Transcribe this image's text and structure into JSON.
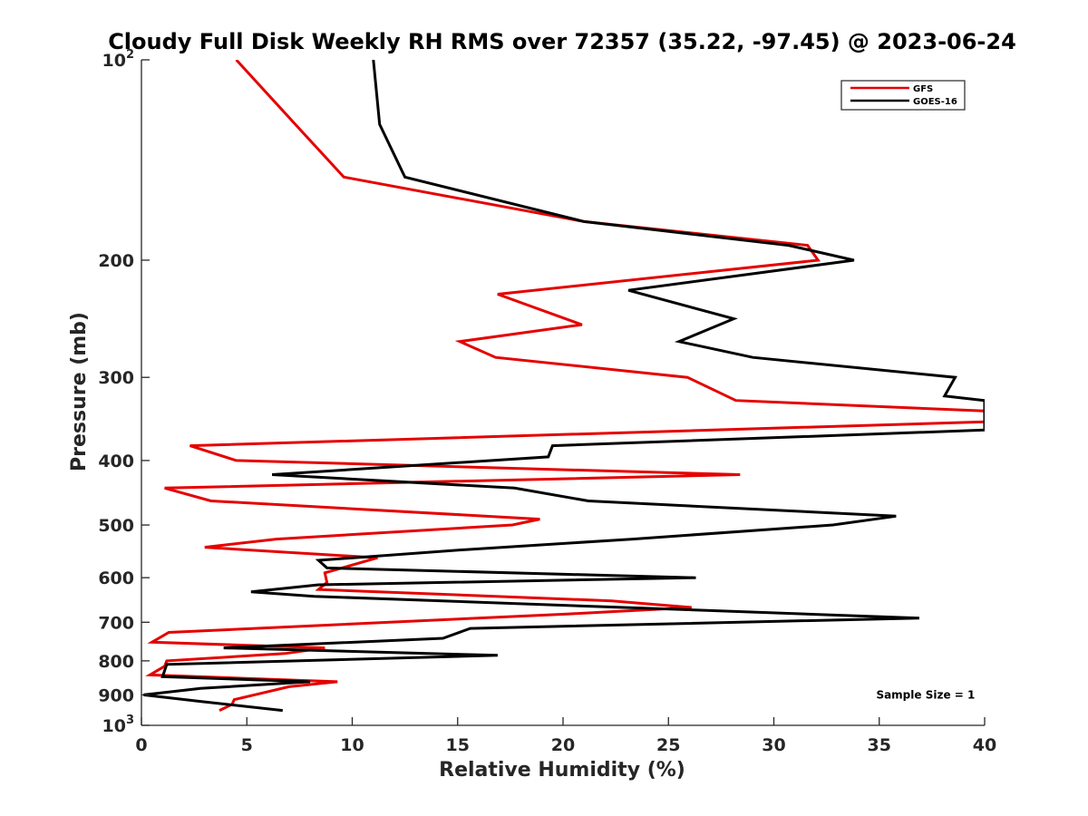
{
  "chart_data": {
    "type": "line",
    "title": "Cloudy Full Disk Weekly RH RMS over 72357 (35.22, -97.45) @ 2023-06-24",
    "xlabel": "Relative Humidity (%)",
    "ylabel": "Pressure (mb)",
    "xlim": [
      0,
      40
    ],
    "ylim": [
      100,
      1000
    ],
    "y_scale": "log",
    "y_reversed": true,
    "grid": false,
    "legend_position": "top-right",
    "x_ticks": [
      0,
      5,
      10,
      15,
      20,
      25,
      30,
      35,
      40
    ],
    "x_tick_labels": [
      "0",
      "5",
      "10",
      "15",
      "20",
      "25",
      "30",
      "35",
      "40"
    ],
    "y_ticks": [
      100,
      200,
      300,
      400,
      500,
      600,
      700,
      800,
      900,
      1000
    ],
    "y_tick_labels": [
      {
        "base": "10",
        "sup": "2"
      },
      {
        "base": "200",
        "sup": ""
      },
      {
        "base": "300",
        "sup": ""
      },
      {
        "base": "400",
        "sup": ""
      },
      {
        "base": "500",
        "sup": ""
      },
      {
        "base": "600",
        "sup": ""
      },
      {
        "base": "700",
        "sup": ""
      },
      {
        "base": "800",
        "sup": ""
      },
      {
        "base": "900",
        "sup": ""
      },
      {
        "base": "10",
        "sup": "3"
      }
    ],
    "series": [
      {
        "name": "GFS",
        "color": "#e50000",
        "points": [
          [
            4.5,
            100
          ],
          [
            7.3,
            125
          ],
          [
            9.6,
            150
          ],
          [
            21.0,
            175
          ],
          [
            31.6,
            190
          ],
          [
            32.1,
            200
          ],
          [
            16.9,
            225
          ],
          [
            20.9,
            250
          ],
          [
            15.1,
            265
          ],
          [
            16.8,
            280
          ],
          [
            25.9,
            300
          ],
          [
            28.2,
            325
          ],
          [
            40.0,
            337
          ],
          [
            40.0,
            350
          ],
          [
            2.3,
            380
          ],
          [
            4.5,
            400
          ],
          [
            28.4,
            420
          ],
          [
            1.1,
            440
          ],
          [
            3.3,
            460
          ],
          [
            18.9,
            490
          ],
          [
            17.6,
            500
          ],
          [
            6.4,
            525
          ],
          [
            3.0,
            540
          ],
          [
            11.2,
            560
          ],
          [
            8.7,
            590
          ],
          [
            8.8,
            610
          ],
          [
            8.4,
            625
          ],
          [
            22.3,
            650
          ],
          [
            26.1,
            665
          ],
          [
            20.3,
            680
          ],
          [
            1.3,
            725
          ],
          [
            0.5,
            750
          ],
          [
            8.7,
            765
          ],
          [
            6.8,
            780
          ],
          [
            1.2,
            800
          ],
          [
            1.1,
            815
          ],
          [
            0.4,
            840
          ],
          [
            9.3,
            860
          ],
          [
            7.0,
            875
          ],
          [
            4.4,
            915
          ],
          [
            4.3,
            930
          ],
          [
            3.7,
            950
          ]
        ]
      },
      {
        "name": "GOES-16",
        "color": "#000000",
        "points": [
          [
            11.0,
            100
          ],
          [
            11.3,
            125
          ],
          [
            12.5,
            150
          ],
          [
            21.0,
            175
          ],
          [
            30.7,
            190
          ],
          [
            33.8,
            200
          ],
          [
            23.1,
            222
          ],
          [
            28.1,
            245
          ],
          [
            25.5,
            265
          ],
          [
            29.0,
            280
          ],
          [
            38.6,
            300
          ],
          [
            38.1,
            320
          ],
          [
            40.0,
            325
          ],
          [
            40.0,
            360
          ],
          [
            19.5,
            380
          ],
          [
            19.3,
            395
          ],
          [
            6.2,
            420
          ],
          [
            17.7,
            440
          ],
          [
            21.2,
            460
          ],
          [
            35.8,
            485
          ],
          [
            32.8,
            500
          ],
          [
            23.3,
            525
          ],
          [
            15.2,
            545
          ],
          [
            8.4,
            565
          ],
          [
            8.8,
            580
          ],
          [
            26.3,
            600
          ],
          [
            8.4,
            615
          ],
          [
            5.2,
            630
          ],
          [
            8.2,
            640
          ],
          [
            36.9,
            690
          ],
          [
            15.6,
            715
          ],
          [
            14.3,
            740
          ],
          [
            3.9,
            765
          ],
          [
            16.9,
            785
          ],
          [
            1.2,
            810
          ],
          [
            1.0,
            845
          ],
          [
            8.0,
            860
          ],
          [
            2.8,
            880
          ],
          [
            0.1,
            900
          ],
          [
            2.7,
            920
          ],
          [
            6.7,
            950
          ]
        ]
      }
    ],
    "annotations": [
      {
        "text": "Sample Size = 1",
        "x": 37.2,
        "y": 900
      }
    ]
  }
}
